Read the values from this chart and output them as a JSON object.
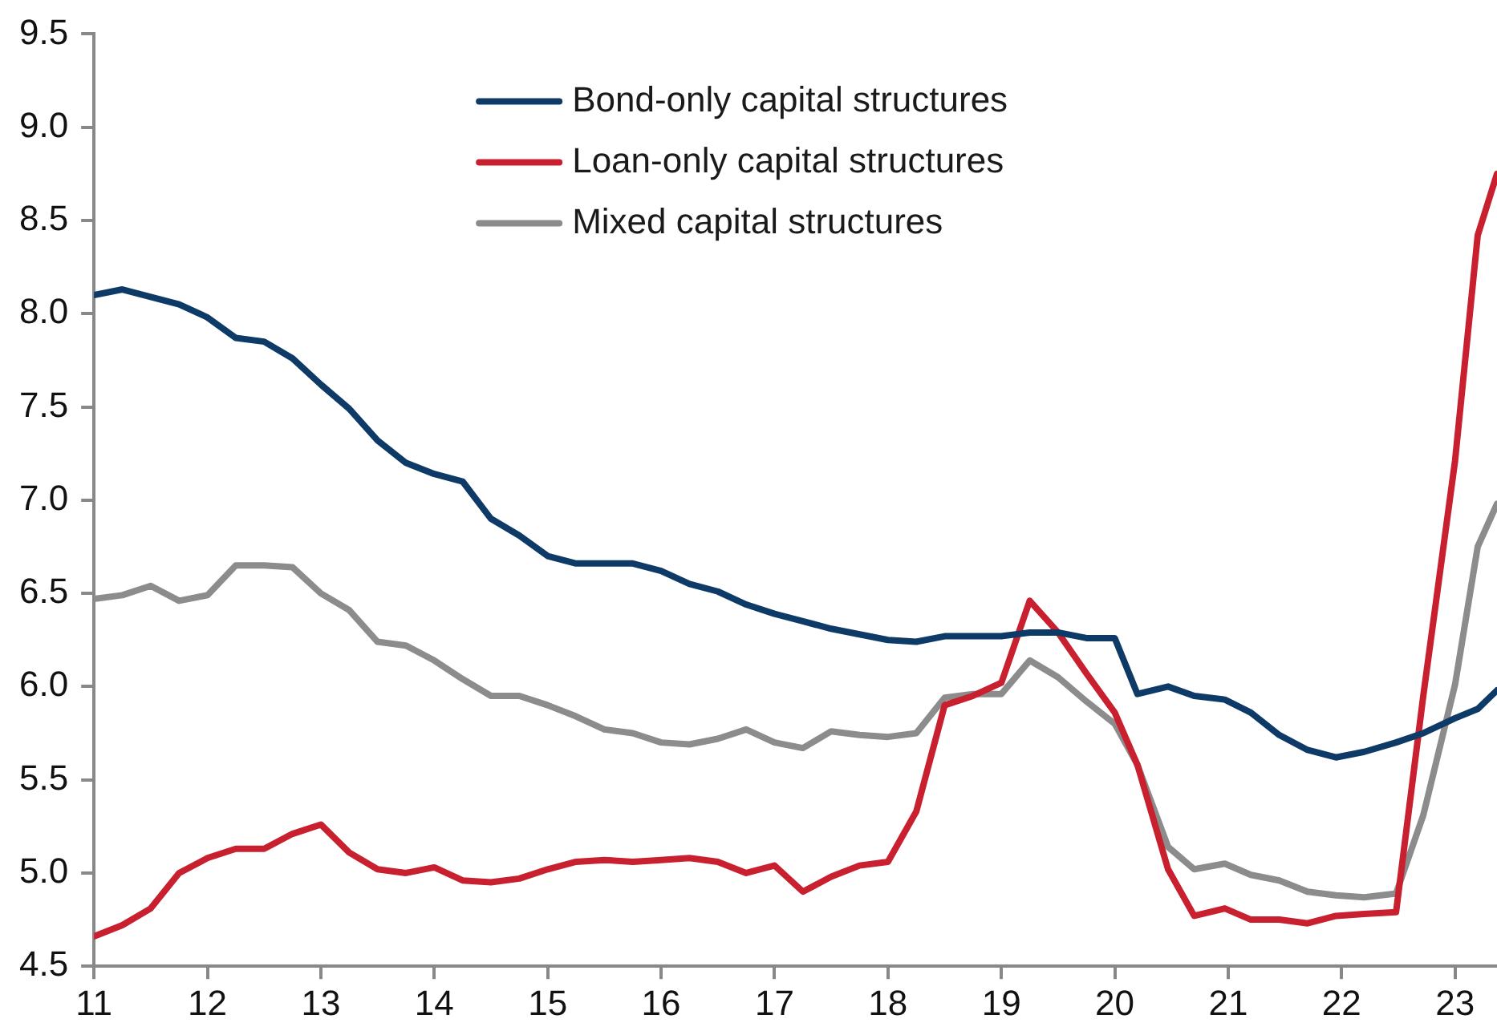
{
  "chart_data": {
    "type": "line",
    "x": [
      11,
      11.25,
      11.5,
      11.75,
      12,
      12.25,
      12.5,
      12.75,
      13,
      13.25,
      13.5,
      13.75,
      14,
      14.25,
      14.5,
      14.75,
      15,
      15.25,
      15.5,
      15.75,
      16,
      16.25,
      16.5,
      16.75,
      17,
      17.25,
      17.5,
      17.75,
      18,
      18.25,
      18.5,
      18.75,
      19,
      19.25,
      19.5,
      19.75,
      20,
      20.2,
      20.47,
      20.7,
      20.97,
      21.2,
      21.45,
      21.7,
      21.95,
      22.2,
      22.48,
      22.72,
      23,
      23.2,
      23.37
    ],
    "series": [
      {
        "name": "Bond-only capital structures",
        "color": "#0d3a66",
        "values": [
          8.1,
          8.13,
          8.09,
          8.05,
          7.98,
          7.87,
          7.85,
          7.76,
          7.62,
          7.49,
          7.32,
          7.2,
          7.14,
          7.1,
          6.9,
          6.81,
          6.7,
          6.66,
          6.66,
          6.66,
          6.62,
          6.55,
          6.51,
          6.44,
          6.39,
          6.35,
          6.31,
          6.28,
          6.25,
          6.24,
          6.27,
          6.27,
          6.27,
          6.29,
          6.29,
          6.26,
          6.26,
          5.96,
          6.0,
          5.95,
          5.93,
          5.86,
          5.74,
          5.66,
          5.62,
          5.65,
          5.7,
          5.75,
          5.83,
          5.88,
          5.98
        ]
      },
      {
        "name": "Loan-only capital structures",
        "color": "#c8202f",
        "values": [
          4.66,
          4.72,
          4.81,
          5.0,
          5.08,
          5.13,
          5.13,
          5.21,
          5.26,
          5.11,
          5.02,
          5.0,
          5.03,
          4.96,
          4.95,
          4.97,
          5.02,
          5.06,
          5.07,
          5.06,
          5.07,
          5.08,
          5.06,
          5.0,
          5.04,
          4.9,
          4.98,
          5.04,
          5.06,
          5.33,
          5.9,
          5.95,
          6.02,
          6.46,
          6.29,
          6.07,
          5.86,
          5.58,
          5.02,
          4.77,
          4.81,
          4.75,
          4.75,
          4.73,
          4.77,
          4.78,
          4.79,
          5.95,
          7.21,
          8.42,
          8.75
        ]
      },
      {
        "name": "Mixed capital structures",
        "color": "#8c8c8c",
        "values": [
          6.47,
          6.49,
          6.54,
          6.46,
          6.49,
          6.65,
          6.65,
          6.64,
          6.5,
          6.41,
          6.24,
          6.22,
          6.14,
          6.04,
          5.95,
          5.95,
          5.9,
          5.84,
          5.77,
          5.75,
          5.7,
          5.69,
          5.72,
          5.77,
          5.7,
          5.67,
          5.76,
          5.74,
          5.73,
          5.75,
          5.94,
          5.96,
          5.96,
          6.14,
          6.05,
          5.92,
          5.8,
          5.58,
          5.14,
          5.02,
          5.05,
          4.99,
          4.96,
          4.9,
          4.88,
          4.87,
          4.89,
          5.31,
          6.01,
          6.75,
          6.98
        ]
      }
    ],
    "xlim": [
      11,
      23.37
    ],
    "xticks": [
      11,
      12,
      13,
      14,
      15,
      16,
      17,
      18,
      19,
      20,
      21,
      22,
      23
    ],
    "ylim": [
      4.5,
      9.5
    ],
    "yticks": [
      {
        "value": 4.5,
        "label": "4.5"
      },
      {
        "value": 5,
        "label": "5.0"
      },
      {
        "value": 5.5,
        "label": "5.5"
      },
      {
        "value": 6,
        "label": "6.0"
      },
      {
        "value": 6.5,
        "label": "6.5"
      },
      {
        "value": 7,
        "label": "7.0"
      },
      {
        "value": 7.5,
        "label": "7.5"
      },
      {
        "value": 8,
        "label": "8.0"
      },
      {
        "value": 8.5,
        "label": "8.5"
      },
      {
        "value": 9,
        "label": "9.0"
      },
      {
        "value": 9.5,
        "label": "9.5"
      }
    ],
    "grid": false,
    "legend": "top",
    "marker": "none",
    "line_style": "solid"
  }
}
